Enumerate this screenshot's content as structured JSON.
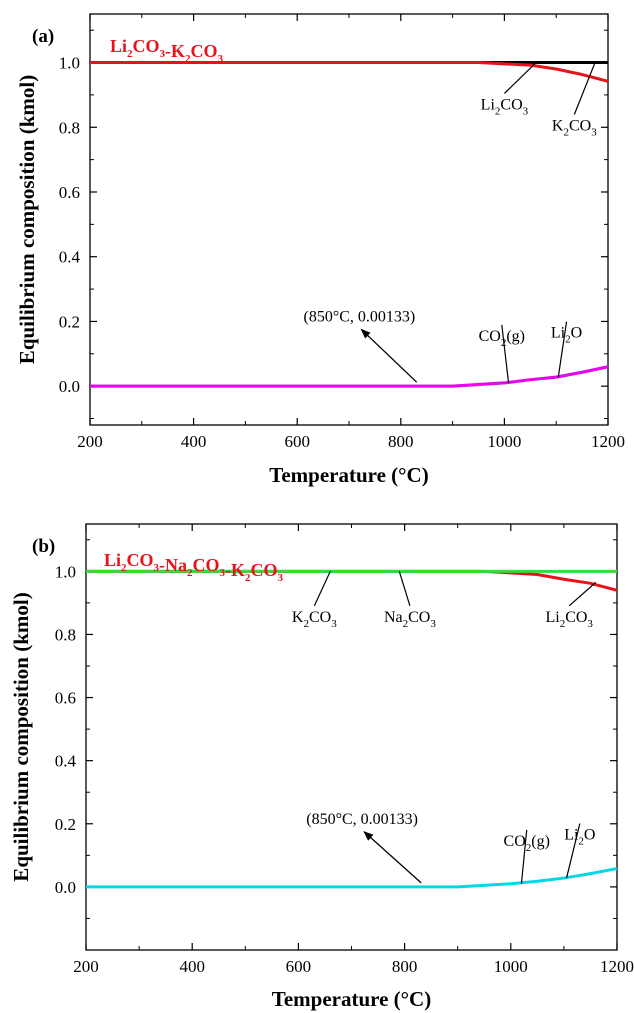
{
  "chart_data": [
    {
      "type": "line",
      "panel_label": "(a)",
      "system": {
        "parts": [
          [
            "Li",
            "2",
            "CO",
            "3"
          ],
          [
            "-",
            ""
          ],
          [
            "K",
            "2",
            "CO",
            "3"
          ]
        ]
      },
      "system_color": "#e8121a",
      "xlabel": "Temperature (°C)",
      "ylabel": "Equilibrium composition (kmol)",
      "xlim": [
        200,
        1200
      ],
      "ylim": [
        -0.12,
        1.15
      ],
      "xticks": [
        200,
        400,
        600,
        800,
        1000,
        1200
      ],
      "xtick_labels": [
        "200",
        "400",
        "600",
        "800",
        "1000",
        "1200"
      ],
      "yticks": [
        0.0,
        0.2,
        0.4,
        0.6,
        0.8,
        1.0
      ],
      "ytick_labels": [
        "0.0",
        "0.2",
        "0.4",
        "0.6",
        "0.8",
        "1.0"
      ],
      "series": [
        {
          "color": "#000000",
          "x": [
            200,
            1200
          ],
          "y": [
            1.0,
            1.0
          ]
        },
        {
          "color": "#e8121a",
          "x": [
            200,
            950,
            1050,
            1100,
            1150,
            1200
          ],
          "y": [
            1.0,
            1.0,
            0.992,
            0.98,
            0.963,
            0.942
          ]
        },
        {
          "color": "#00c8c8",
          "x": [
            200,
            900,
            1000,
            1050,
            1100,
            1150,
            1200
          ],
          "y": [
            0.0,
            0.0,
            0.01,
            0.02,
            0.028,
            0.043,
            0.06
          ]
        },
        {
          "color": "#ee00ee",
          "x": [
            200,
            900,
            1000,
            1050,
            1100,
            1150,
            1200
          ],
          "y": [
            0.0,
            0.0,
            0.01,
            0.02,
            0.028,
            0.043,
            0.06
          ]
        }
      ],
      "annotations": [
        {
          "parts": [
            [
              "Li",
              "2",
              "CO",
              "3"
            ]
          ],
          "ref": [
            1060,
            0.998
          ],
          "text_at": [
            1000,
            0.855
          ]
        },
        {
          "parts": [
            [
              "K",
              "2",
              "CO",
              "3"
            ]
          ],
          "ref": [
            1175,
            1.0
          ],
          "text_at": [
            1135,
            0.79
          ]
        },
        {
          "parts": [
            [
              "(850°C, 0.00133)",
              ""
            ]
          ],
          "ref": [
            850,
            0.0
          ],
          "text_at": [
            720,
            0.2
          ],
          "arrow": true
        },
        {
          "parts": [
            [
              "CO",
              "2",
              "(g)",
              ""
            ]
          ],
          "ref": [
            1008,
            0.01
          ],
          "text_at": [
            995,
            0.14
          ]
        },
        {
          "parts": [
            [
              "Li",
              "2",
              "O",
              ""
            ]
          ],
          "ref": [
            1104,
            0.028
          ],
          "text_at": [
            1120,
            0.15
          ]
        }
      ]
    },
    {
      "type": "line",
      "panel_label": "(b)",
      "system": {
        "parts": [
          [
            "Li",
            "2",
            "CO",
            "3"
          ],
          [
            "-",
            ""
          ],
          [
            "Na",
            "2",
            "CO",
            "3"
          ],
          [
            "-",
            ""
          ],
          [
            "K",
            "2",
            "CO",
            "3"
          ]
        ]
      },
      "system_color": "#e8121a",
      "xlabel": "Temperature (°C)",
      "ylabel": "Equilibrium composition (kmol)",
      "xlim": [
        200,
        1200
      ],
      "ylim": [
        -0.2,
        1.15
      ],
      "xticks": [
        200,
        400,
        600,
        800,
        1000,
        1200
      ],
      "xtick_labels": [
        "200",
        "400",
        "600",
        "800",
        "1000",
        "1200"
      ],
      "yticks": [
        0.0,
        0.2,
        0.4,
        0.6,
        0.8,
        1.0
      ],
      "ytick_labels": [
        "0.0",
        "0.2",
        "0.4",
        "0.6",
        "0.8",
        "1.0"
      ],
      "series": [
        {
          "color": "#e8121a",
          "x": [
            200,
            950,
            1050,
            1100,
            1150,
            1200
          ],
          "y": [
            1.0,
            1.0,
            0.99,
            0.975,
            0.962,
            0.94
          ]
        },
        {
          "color": "#33dd33",
          "x": [
            200,
            1200
          ],
          "y": [
            1.0,
            1.0
          ]
        },
        {
          "color": "#00d8e8",
          "x": [
            200,
            900,
            1000,
            1050,
            1100,
            1150,
            1200
          ],
          "y": [
            0.0,
            0.0,
            0.01,
            0.018,
            0.028,
            0.042,
            0.058
          ]
        }
      ],
      "annotations": [
        {
          "parts": [
            [
              "K",
              "2",
              "CO",
              "3"
            ]
          ],
          "ref": [
            660,
            1.0
          ],
          "text_at": [
            630,
            0.84
          ]
        },
        {
          "parts": [
            [
              "Na",
              "2",
              "CO",
              "3"
            ]
          ],
          "ref": [
            790,
            1.0
          ],
          "text_at": [
            810,
            0.84
          ]
        },
        {
          "parts": [
            [
              "Li",
              "2",
              "CO",
              "3"
            ]
          ],
          "ref": [
            1160,
            0.965
          ],
          "text_at": [
            1110,
            0.84
          ]
        },
        {
          "parts": [
            [
              "(850°C, 0.00133)",
              ""
            ]
          ],
          "ref": [
            850,
            0.0
          ],
          "text_at": [
            720,
            0.2
          ],
          "arrow": true
        },
        {
          "parts": [
            [
              "CO",
              "2",
              "(g)",
              ""
            ]
          ],
          "ref": [
            1020,
            0.01
          ],
          "text_at": [
            1030,
            0.13
          ]
        },
        {
          "parts": [
            [
              "Li",
              "2",
              "O",
              ""
            ]
          ],
          "ref": [
            1105,
            0.028
          ],
          "text_at": [
            1130,
            0.15
          ]
        }
      ]
    }
  ]
}
